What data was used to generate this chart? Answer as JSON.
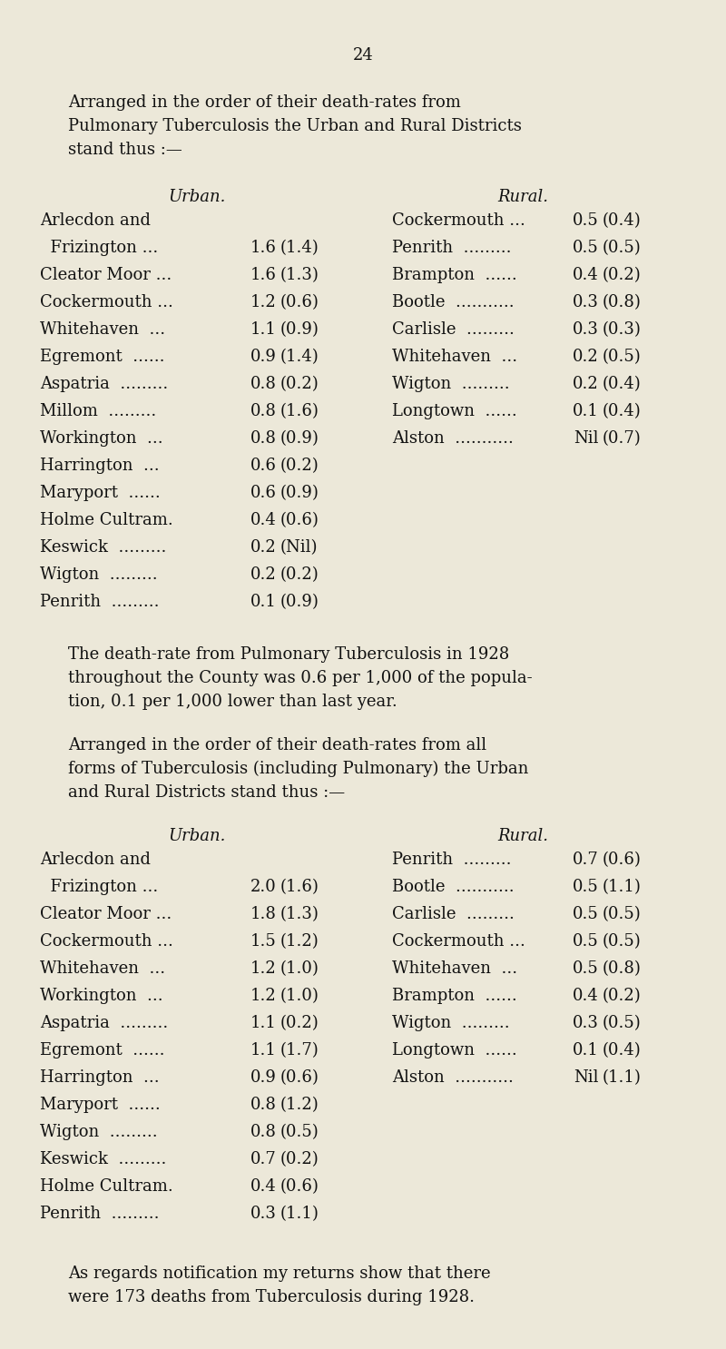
{
  "page_number": "24",
  "bg_color": "#ece8d9",
  "text_color": "#111111",
  "para1_lines": [
    "Arranged in the order of their death-rates from",
    "Pulmonary Tuberculosis the Urban and Rural Districts",
    "stand thus :—"
  ],
  "urban_header1": "Urban.",
  "rural_header1": "Rural.",
  "urban_rows1": [
    [
      "Arlecdon and",
      "",
      ""
    ],
    [
      "  Frizington ...",
      "1.6",
      "(1.4)"
    ],
    [
      "Cleator Moor ...",
      "1.6",
      "(1.3)"
    ],
    [
      "Cockermouth ...",
      "1.2",
      "(0.6)"
    ],
    [
      "Whitehaven  ...",
      "1.1",
      "(0.9)"
    ],
    [
      "Egremont  ......",
      "0.9",
      "(1.4)"
    ],
    [
      "Aspatria  .........",
      "0.8",
      "(0.2)"
    ],
    [
      "Millom  .........",
      "0.8",
      "(1.6)"
    ],
    [
      "Workington  ...",
      "0.8",
      "(0.9)"
    ],
    [
      "Harrington  ...",
      "0.6",
      "(0.2)"
    ],
    [
      "Maryport  ......",
      "0.6",
      "(0.9)"
    ],
    [
      "Holme Cultram.",
      "0.4",
      "(0.6)"
    ],
    [
      "Keswick  .........",
      "0.2",
      "(Nil)"
    ],
    [
      "Wigton  .........",
      "0.2",
      "(0.2)"
    ],
    [
      "Penrith  .........",
      "0.1",
      "(0.9)"
    ]
  ],
  "rural_rows1": [
    [
      "Cockermouth ...",
      "0.5",
      "(0.4)"
    ],
    [
      "Penrith  .........",
      "0.5",
      "(0.5)"
    ],
    [
      "Brampton  ......",
      "0.4",
      "(0.2)"
    ],
    [
      "Bootle  ...........",
      "0.3",
      "(0.8)"
    ],
    [
      "Carlisle  .........",
      "0.3",
      "(0.3)"
    ],
    [
      "Whitehaven  ...",
      "0.2",
      "(0.5)"
    ],
    [
      "Wigton  .........",
      "0.2",
      "(0.4)"
    ],
    [
      "Longtown  ......",
      "0.1",
      "(0.4)"
    ],
    [
      "Alston  ...........",
      "Nil",
      "(0.7)"
    ]
  ],
  "para2_lines": [
    "The death-rate from Pulmonary Tuberculosis in 1928",
    "throughout the County was 0.6 per 1,000 of the popula-",
    "tion, 0.1 per 1,000 lower than last year."
  ],
  "para3_lines": [
    "Arranged in the order of their death-rates from all",
    "forms of Tuberculosis (including Pulmonary) the Urban",
    "and Rural Districts stand thus :—"
  ],
  "urban_header2": "Urban.",
  "rural_header2": "Rural.",
  "urban_rows2": [
    [
      "Arlecdon and",
      "",
      ""
    ],
    [
      "  Frizington ...",
      "2.0",
      "(1.6)"
    ],
    [
      "Cleator Moor ...",
      "1.8",
      "(1.3)"
    ],
    [
      "Cockermouth ...",
      "1.5",
      "(1.2)"
    ],
    [
      "Whitehaven  ...",
      "1.2",
      "(1.0)"
    ],
    [
      "Workington  ...",
      "1.2",
      "(1.0)"
    ],
    [
      "Aspatria  .........",
      "1.1",
      "(0.2)"
    ],
    [
      "Egremont  ......",
      "1.1",
      "(1.7)"
    ],
    [
      "Harrington  ...",
      "0.9",
      "(0.6)"
    ],
    [
      "Maryport  ......",
      "0.8",
      "(1.2)"
    ],
    [
      "Wigton  .........",
      "0.8",
      "(0.5)"
    ],
    [
      "Keswick  .........",
      "0.7",
      "(0.2)"
    ],
    [
      "Holme Cultram.",
      "0.4",
      "(0.6)"
    ],
    [
      "Penrith  .........",
      "0.3",
      "(1.1)"
    ]
  ],
  "rural_rows2": [
    [
      "Penrith  .........",
      "0.7",
      "(0.6)"
    ],
    [
      "Bootle  ...........",
      "0.5",
      "(1.1)"
    ],
    [
      "Carlisle  .........",
      "0.5",
      "(0.5)"
    ],
    [
      "Cockermouth ...",
      "0.5",
      "(0.5)"
    ],
    [
      "Whitehaven  ...",
      "0.5",
      "(0.8)"
    ],
    [
      "Brampton  ......",
      "0.4",
      "(0.2)"
    ],
    [
      "Wigton  .........",
      "0.3",
      "(0.5)"
    ],
    [
      "Longtown  ......",
      "0.1",
      "(0.4)"
    ],
    [
      "Alston  ...........",
      "Nil",
      "(1.1)"
    ]
  ],
  "para4_lines": [
    "As regards notification my returns show that there",
    "were 173 deaths from Tuberculosis during 1928."
  ]
}
